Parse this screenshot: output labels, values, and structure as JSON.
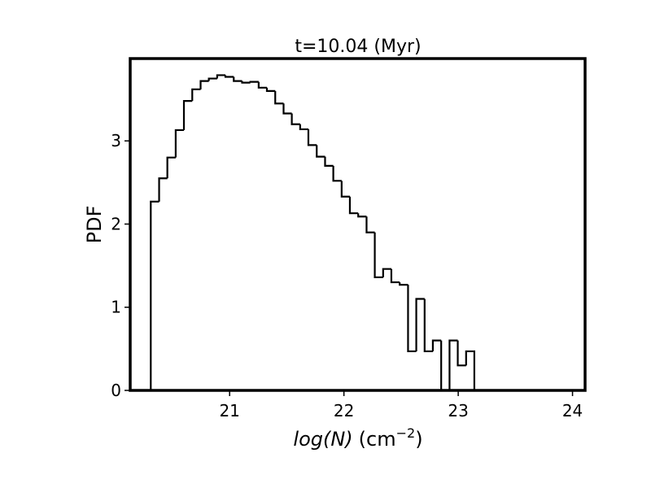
{
  "chart_data": {
    "type": "histogram",
    "title": "t=10.04 (Myr)",
    "x_label": [
      "log(N)",
      "(cm",
      "−2",
      ")"
    ],
    "y_label": "PDF",
    "bins": [
      20.31,
      20.383,
      20.455,
      20.528,
      20.6,
      20.673,
      20.746,
      20.818,
      20.891,
      20.963,
      21.036,
      21.109,
      21.181,
      21.254,
      21.326,
      21.399,
      21.472,
      21.544,
      21.617,
      21.689,
      21.762,
      21.835,
      21.907,
      21.98,
      22.052,
      22.125,
      22.198,
      22.27,
      22.343,
      22.415,
      22.488,
      22.561,
      22.633,
      22.706,
      22.778,
      22.851,
      22.924,
      22.996,
      23.069,
      23.141
    ],
    "values": [
      2.27,
      2.55,
      2.8,
      3.13,
      3.48,
      3.62,
      3.72,
      3.75,
      3.79,
      3.77,
      3.72,
      3.7,
      3.71,
      3.64,
      3.6,
      3.45,
      3.33,
      3.2,
      3.14,
      2.95,
      2.81,
      2.7,
      2.52,
      2.33,
      2.13,
      2.09,
      1.9,
      1.36,
      1.46,
      1.3,
      1.27,
      0.47,
      1.1,
      0.47,
      0.6,
      0,
      0.6,
      0.3,
      0.47
    ],
    "color": "#000000",
    "xlim": [
      20.13,
      24.11
    ],
    "ylim": [
      0,
      3.99
    ],
    "xticks": [
      21,
      22,
      23,
      24
    ],
    "yticks": [
      0,
      1,
      2,
      3
    ],
    "grid": false
  }
}
